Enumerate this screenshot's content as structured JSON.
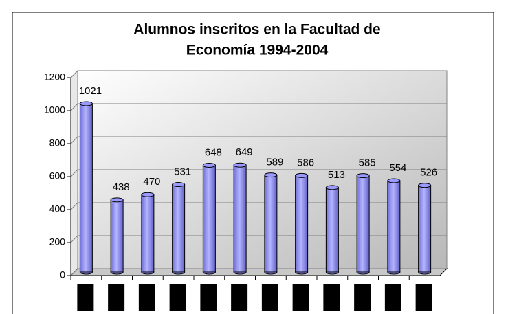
{
  "chart_data": {
    "type": "bar",
    "title_lines": [
      "Alumnos inscritos en la Facultad de",
      "Economía 1994-2004"
    ],
    "categories": [
      null,
      null,
      null,
      null,
      null,
      null,
      null,
      null,
      null,
      null,
      null,
      null
    ],
    "values": [
      1021,
      438,
      470,
      531,
      648,
      649,
      589,
      586,
      513,
      585,
      554,
      526
    ],
    "color": "#9999ff",
    "ylim": [
      0,
      1200
    ],
    "yticks": [
      0,
      200,
      400,
      600,
      800,
      1000,
      1200
    ],
    "grid": true
  }
}
